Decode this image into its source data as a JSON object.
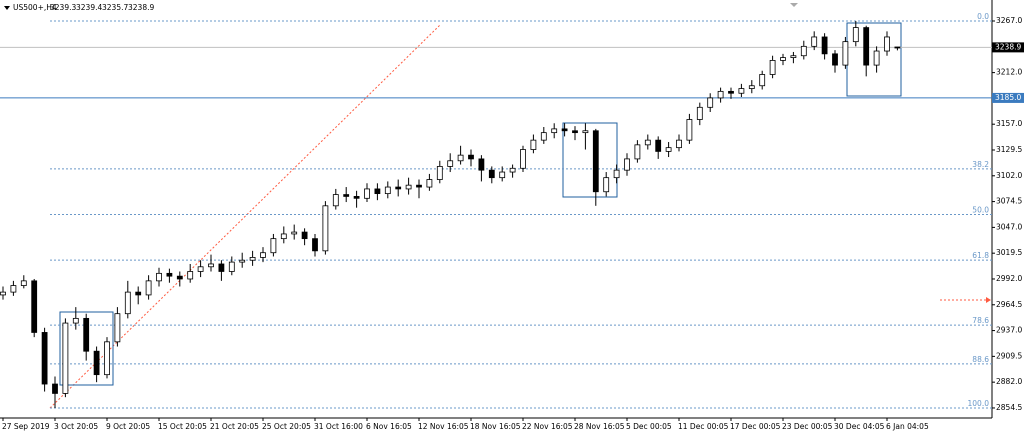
{
  "chart_data": {
    "type": "candlestick",
    "symbol": "US500+,H4",
    "color": "#000000",
    "ylim": [
      2843.8,
      3289.4
    ],
    "yticks": [
      {
        "value": 3267,
        "label": "3267.0"
      },
      {
        "value": 3212,
        "label": "3212.0"
      },
      {
        "value": 3157,
        "label": "3157.0"
      },
      3129.5,
      {
        "value": 3102,
        "label": "3102.0"
      },
      3074.5,
      {
        "value": 3047,
        "label": "3047.0"
      },
      3019.5,
      {
        "value": 2992,
        "label": "2992.0"
      },
      2964.5,
      {
        "value": 2937,
        "label": "2937.0"
      },
      2909.5,
      {
        "value": 2882,
        "label": "2882.0"
      },
      2854.5
    ],
    "price_line": {
      "value": 3185,
      "label": "3185.0"
    },
    "fib": {
      "high": 3267,
      "low": 2854.5,
      "levels": [
        {
          "value": 0,
          "label": "0.0"
        },
        38.2,
        {
          "value": 50,
          "label": "50.0"
        },
        61.8,
        78.6,
        88.6,
        {
          "value": 100,
          "label": "100.0"
        }
      ]
    },
    "categories": [
      "27 Sep 2019",
      null,
      null,
      null,
      null,
      "3 Oct 20:05",
      null,
      null,
      null,
      null,
      "9 Oct 20:05",
      null,
      null,
      null,
      null,
      "15 Oct 20:05",
      null,
      null,
      null,
      null,
      "21 Oct 20:05",
      null,
      null,
      null,
      null,
      "25 Oct 20:05",
      null,
      null,
      null,
      null,
      "31 Oct 16:00",
      null,
      null,
      null,
      null,
      "6 Nov 16:05",
      null,
      null,
      null,
      null,
      "12 Nov 16:05",
      null,
      null,
      null,
      null,
      "18 Nov 16:05",
      null,
      null,
      null,
      null,
      "22 Nov 16:05",
      null,
      null,
      null,
      null,
      "28 Nov 16:05",
      null,
      null,
      null,
      null,
      "5 Dec 00:05",
      null,
      null,
      null,
      null,
      "11 Dec 00:05",
      null,
      null,
      null,
      null,
      "17 Dec 00:05",
      null,
      null,
      null,
      null,
      "23 Dec 00:05",
      null,
      null,
      null,
      null,
      "30 Dec 04:05",
      null,
      null,
      null,
      null,
      "6 Jan 04:05",
      null
    ],
    "candles": [
      [
        2975,
        2984,
        2970,
        2978
      ],
      [
        2978,
        2990,
        2974,
        2985
      ],
      [
        2985,
        2996,
        2982,
        2990
      ],
      [
        2990,
        2992,
        2930,
        2935
      ],
      [
        2935,
        2940,
        2872,
        2880
      ],
      [
        2880,
        2888,
        2854.5,
        2870
      ],
      [
        2870,
        2950,
        2866,
        2945
      ],
      [
        2945,
        2962,
        2938,
        2950
      ],
      [
        2950,
        2955,
        2905,
        2915
      ],
      [
        2915,
        2920,
        2882,
        2890
      ],
      [
        2890,
        2930,
        2886,
        2925
      ],
      [
        2925,
        2962,
        2920,
        2955
      ],
      [
        2955,
        2990,
        2950,
        2978
      ],
      [
        2978,
        2984,
        2965,
        2975
      ],
      [
        2975,
        2996,
        2970,
        2990
      ],
      [
        2990,
        3004,
        2984,
        2998
      ],
      [
        2998,
        3003,
        2988,
        2995
      ],
      [
        2995,
        3000,
        2984,
        2992
      ],
      [
        2992,
        3008,
        2988,
        3000
      ],
      [
        3000,
        3012,
        2994,
        3005
      ],
      [
        3005,
        3018,
        3000,
        3008
      ],
      [
        3008,
        3012,
        2990,
        3000
      ],
      [
        3000,
        3016,
        2996,
        3010
      ],
      [
        3010,
        3020,
        3004,
        3012
      ],
      [
        3012,
        3022,
        3006,
        3015
      ],
      [
        3015,
        3026,
        3010,
        3020
      ],
      [
        3020,
        3040,
        3016,
        3035
      ],
      [
        3035,
        3048,
        3030,
        3040
      ],
      [
        3040,
        3050,
        3034,
        3042
      ],
      [
        3042,
        3046,
        3028,
        3035
      ],
      [
        3035,
        3040,
        3016,
        3022
      ],
      [
        3022,
        3075,
        3018,
        3070
      ],
      [
        3070,
        3088,
        3066,
        3082
      ],
      [
        3082,
        3090,
        3074,
        3080
      ],
      [
        3080,
        3086,
        3068,
        3078
      ],
      [
        3078,
        3094,
        3074,
        3088
      ],
      [
        3088,
        3094,
        3076,
        3083
      ],
      [
        3083,
        3096,
        3078,
        3090
      ],
      [
        3090,
        3098,
        3080,
        3088
      ],
      [
        3088,
        3100,
        3082,
        3092
      ],
      [
        3092,
        3098,
        3078,
        3090
      ],
      [
        3090,
        3104,
        3086,
        3098
      ],
      [
        3098,
        3118,
        3094,
        3112
      ],
      [
        3112,
        3126,
        3106,
        3118
      ],
      [
        3118,
        3134,
        3114,
        3124
      ],
      [
        3124,
        3130,
        3112,
        3120
      ],
      [
        3120,
        3124,
        3096,
        3108
      ],
      [
        3108,
        3112,
        3094,
        3100
      ],
      [
        3100,
        3112,
        3096,
        3106
      ],
      [
        3106,
        3114,
        3100,
        3110
      ],
      [
        3110,
        3134,
        3106,
        3130
      ],
      [
        3130,
        3146,
        3126,
        3140
      ],
      [
        3140,
        3154,
        3136,
        3148
      ],
      [
        3148,
        3158,
        3142,
        3152
      ],
      [
        3152,
        3158,
        3144,
        3150
      ],
      [
        3150,
        3155,
        3140,
        3148
      ],
      [
        3148,
        3158,
        3130,
        3150
      ],
      [
        3150,
        3152,
        3070,
        3085
      ],
      [
        3085,
        3106,
        3080,
        3100
      ],
      [
        3100,
        3114,
        3094,
        3108
      ],
      [
        3108,
        3126,
        3102,
        3120
      ],
      [
        3120,
        3140,
        3116,
        3135
      ],
      [
        3135,
        3146,
        3130,
        3140
      ],
      [
        3140,
        3144,
        3120,
        3128
      ],
      [
        3128,
        3138,
        3122,
        3132
      ],
      [
        3132,
        3146,
        3128,
        3140
      ],
      [
        3140,
        3168,
        3136,
        3162
      ],
      [
        3162,
        3180,
        3156,
        3175
      ],
      [
        3175,
        3190,
        3170,
        3185
      ],
      [
        3185,
        3196,
        3180,
        3192
      ],
      [
        3192,
        3196,
        3184,
        3190
      ],
      [
        3190,
        3200,
        3186,
        3195
      ],
      [
        3195,
        3204,
        3190,
        3198
      ],
      [
        3198,
        3214,
        3194,
        3210
      ],
      [
        3210,
        3230,
        3206,
        3225
      ],
      [
        3225,
        3232,
        3220,
        3228
      ],
      [
        3228,
        3234,
        3222,
        3230
      ],
      [
        3230,
        3246,
        3226,
        3240
      ],
      [
        3240,
        3256,
        3236,
        3250
      ],
      [
        3250,
        3254,
        3226,
        3232
      ],
      [
        3232,
        3236,
        3212,
        3220
      ],
      [
        3220,
        3250,
        3216,
        3245
      ],
      [
        3245,
        3267,
        3240,
        3260
      ],
      [
        3260,
        3262,
        3208,
        3220
      ],
      [
        3220,
        3240,
        3212,
        3235
      ],
      [
        3235,
        3256,
        3230,
        3250
      ],
      [
        3239.3,
        3239.4,
        3235.7,
        3238.9
      ]
    ]
  }
}
